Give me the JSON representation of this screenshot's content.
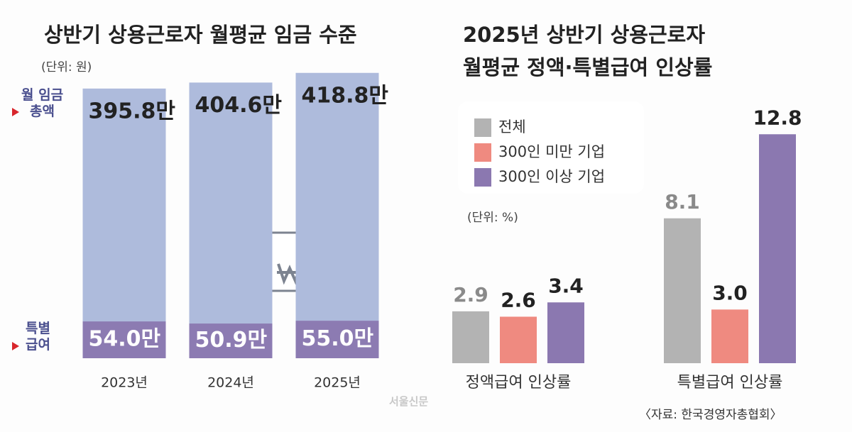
{
  "chart_data": [
    {
      "type": "bar",
      "barmode": "overlay",
      "title": "상반기 상용근로자 월평균 임금 수준",
      "unit": "(단위: 원)",
      "categories": [
        "2023년",
        "2024년",
        "2025년"
      ],
      "series": [
        {
          "name": "월 임금\n총액",
          "color": "#aebbdc",
          "values": [
            395.8,
            404.6,
            418.8
          ],
          "value_labels": [
            "395.8만",
            "404.6만",
            "418.8만"
          ]
        },
        {
          "name": "특별\n급여",
          "color": "#8c7bb2",
          "values": [
            54.0,
            50.9,
            55.0
          ],
          "value_labels": [
            "54.0만",
            "50.9만",
            "55.0만"
          ]
        }
      ],
      "ylim": [
        0,
        430
      ]
    },
    {
      "type": "bar",
      "barmode": "group",
      "title": "2025년 상반기 상용근로자\n월평균 정액·특별급여 인상률",
      "unit": "(단위: %)",
      "categories": [
        "정액급여 인상률",
        "특별급여 인상률"
      ],
      "series": [
        {
          "name": "전체",
          "color": "#b3b3b3",
          "values": [
            2.9,
            8.1
          ]
        },
        {
          "name": "300인 미만 기업",
          "color": "#ef8a80",
          "values": [
            2.6,
            3.0
          ],
          "value_labels": [
            "2.6",
            "3.0"
          ]
        },
        {
          "name": "300인 이상 기업",
          "color": "#8b78b0",
          "values": [
            3.4,
            12.8
          ]
        }
      ],
      "ylim": [
        0,
        14
      ],
      "source": "〈자료: 한국경영자총협회〉"
    }
  ],
  "watermark": "서울신문"
}
